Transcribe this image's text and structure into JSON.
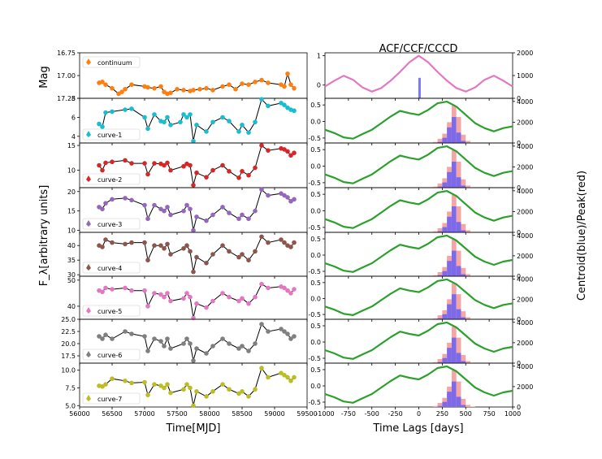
{
  "figure": {
    "left_xlabel": "Time[MJD]",
    "left_ylabel_top": "Mag",
    "left_ylabel_flux": "F_λ[arbitrary units]",
    "right_title": "ACF/CCF/CCCD",
    "right_xlabel": "Time Lags [days]",
    "right_ylabel2": "Centroid(blue)/Peak(red)"
  },
  "chart_data": [
    {
      "type": "line",
      "id": "left-light-curves",
      "x_range": [
        56000,
        59500
      ],
      "x_ticks": [
        56000,
        56500,
        57000,
        57500,
        58000,
        58500,
        59000,
        59500
      ],
      "xlabel": "Time[MJD]",
      "panels": [
        {
          "name": "continuum",
          "color": "#ff7f0e",
          "invert_y": true,
          "ylim": [
            17.25,
            16.75
          ],
          "yticks": [
            16.75,
            17.0,
            17.25
          ],
          "ytick_labels": [
            "16.75",
            "17.00",
            "17.25"
          ],
          "x": [
            56300,
            56350,
            56400,
            56500,
            56600,
            56650,
            56700,
            56800,
            57000,
            57050,
            57150,
            57250,
            57300,
            57350,
            57400,
            57500,
            57600,
            57700,
            57750,
            57850,
            57950,
            58050,
            58200,
            58300,
            58400,
            58500,
            58600,
            58700,
            58800,
            58900,
            59100,
            59150,
            59200,
            59250,
            59300
          ],
          "y": [
            17.08,
            17.07,
            17.1,
            17.14,
            17.2,
            17.18,
            17.15,
            17.1,
            17.12,
            17.13,
            17.14,
            17.12,
            17.18,
            17.2,
            17.19,
            17.15,
            17.16,
            17.17,
            17.16,
            17.15,
            17.14,
            17.16,
            17.12,
            17.1,
            17.15,
            17.09,
            17.1,
            17.07,
            17.05,
            17.08,
            17.1,
            17.12,
            16.98,
            17.1,
            17.14
          ]
        },
        {
          "name": "curve-1",
          "color": "#17becf",
          "ylim": [
            3.3,
            8.0
          ],
          "yticks": [
            4,
            6,
            8
          ],
          "ytick_labels": [
            "4",
            "6",
            "8"
          ],
          "x": [
            56300,
            56350,
            56400,
            56500,
            56700,
            56800,
            57000,
            57050,
            57150,
            57250,
            57300,
            57350,
            57400,
            57550,
            57600,
            57650,
            57700,
            57750,
            57800,
            57950,
            58050,
            58200,
            58300,
            58450,
            58500,
            58600,
            58700,
            58800,
            58900,
            59100,
            59150,
            59200,
            59250,
            59300
          ],
          "y": [
            5.3,
            5.0,
            6.5,
            6.6,
            6.8,
            6.9,
            6.0,
            4.8,
            6.3,
            5.6,
            5.5,
            6.0,
            5.2,
            5.5,
            6.3,
            6.0,
            6.3,
            3.5,
            5.2,
            4.5,
            5.5,
            6.0,
            5.6,
            4.5,
            5.2,
            4.4,
            5.5,
            7.9,
            7.2,
            7.5,
            7.3,
            7.0,
            6.8,
            6.7
          ]
        },
        {
          "name": "curve-2",
          "color": "#d62728",
          "ylim": [
            6.5,
            15.5
          ],
          "yticks": [
            10,
            15
          ],
          "ytick_labels": [
            "10",
            "15"
          ],
          "x": [
            56300,
            56350,
            56400,
            56500,
            56700,
            56800,
            57000,
            57050,
            57150,
            57250,
            57300,
            57350,
            57400,
            57600,
            57650,
            57700,
            57750,
            57800,
            57950,
            58050,
            58200,
            58300,
            58450,
            58500,
            58600,
            58700,
            58800,
            58900,
            59100,
            59150,
            59200,
            59250,
            59300
          ],
          "y": [
            11.0,
            10.0,
            11.5,
            11.7,
            12.0,
            11.4,
            11.4,
            9.2,
            11.4,
            11.3,
            11.0,
            11.5,
            10.0,
            10.8,
            11.3,
            11.0,
            7.0,
            9.5,
            8.6,
            10.0,
            11.0,
            9.8,
            8.5,
            9.8,
            9.0,
            10.5,
            15.0,
            14.0,
            14.4,
            14.2,
            13.8,
            13.0,
            13.5
          ]
        },
        {
          "name": "curve-3",
          "color": "#9467bd",
          "ylim": [
            9.5,
            21.0
          ],
          "yticks": [
            10,
            15,
            20
          ],
          "ytick_labels": [
            "10",
            "15",
            "20"
          ],
          "x": [
            56300,
            56350,
            56400,
            56500,
            56700,
            56800,
            57000,
            57050,
            57150,
            57250,
            57300,
            57350,
            57400,
            57600,
            57650,
            57700,
            57750,
            57800,
            57950,
            58050,
            58200,
            58300,
            58450,
            58500,
            58600,
            58700,
            58800,
            58900,
            59100,
            59150,
            59200,
            59250,
            59300
          ],
          "y": [
            16.0,
            15.5,
            17.0,
            18.0,
            18.3,
            17.8,
            16.5,
            13.0,
            16.5,
            15.5,
            15.0,
            16.0,
            14.0,
            15.0,
            16.5,
            15.5,
            10.0,
            13.5,
            12.5,
            14.0,
            16.0,
            14.5,
            13.0,
            14.0,
            13.0,
            15.0,
            20.5,
            19.0,
            19.5,
            19.0,
            18.5,
            17.5,
            18.0
          ]
        },
        {
          "name": "curve-4",
          "color": "#8c564b",
          "ylim": [
            29.5,
            44.5
          ],
          "yticks": [
            30,
            35,
            40
          ],
          "ytick_labels": [
            "30",
            "35",
            "40"
          ],
          "x": [
            56300,
            56350,
            56400,
            56500,
            56700,
            56800,
            57000,
            57050,
            57150,
            57250,
            57300,
            57350,
            57400,
            57600,
            57650,
            57700,
            57750,
            57800,
            57950,
            58050,
            58200,
            58300,
            58450,
            58500,
            58600,
            58700,
            58800,
            58900,
            59100,
            59150,
            59200,
            59250,
            59300
          ],
          "y": [
            40.0,
            39.5,
            42.0,
            41.0,
            40.5,
            41.0,
            41.0,
            35.0,
            40.0,
            40.0,
            39.0,
            40.5,
            37.0,
            39.0,
            40.0,
            38.0,
            31.0,
            36.0,
            34.0,
            37.0,
            40.0,
            38.0,
            36.0,
            37.0,
            35.0,
            38.0,
            43.0,
            41.0,
            42.0,
            41.0,
            40.0,
            39.5,
            41.0
          ]
        },
        {
          "name": "curve-5",
          "color": "#e377c2",
          "ylim": [
            35.0,
            51.5
          ],
          "yticks": [
            40,
            50
          ],
          "ytick_labels": [
            "40",
            "50"
          ],
          "x": [
            56300,
            56350,
            56400,
            56500,
            56700,
            56800,
            57000,
            57050,
            57150,
            57250,
            57300,
            57350,
            57400,
            57600,
            57650,
            57700,
            57750,
            57800,
            57950,
            58050,
            58200,
            58300,
            58450,
            58500,
            58600,
            58700,
            58800,
            58900,
            59100,
            59150,
            59200,
            59250,
            59300
          ],
          "y": [
            46.0,
            45.5,
            47.0,
            46.5,
            47.0,
            46.0,
            46.0,
            40.0,
            45.0,
            44.5,
            43.5,
            45.0,
            42.0,
            43.0,
            45.0,
            43.5,
            35.5,
            41.0,
            39.5,
            42.0,
            45.0,
            43.5,
            42.0,
            43.0,
            41.0,
            43.5,
            48.5,
            47.0,
            47.5,
            47.0,
            46.0,
            45.0,
            46.5
          ]
        },
        {
          "name": "curve-6",
          "color": "#7f7f7f",
          "ylim": [
            16.0,
            25.0
          ],
          "yticks": [
            17.5,
            20.0,
            22.5,
            25.0
          ],
          "ytick_labels": [
            "17.5",
            "20.0",
            "22.5",
            "25.0"
          ],
          "x": [
            56300,
            56350,
            56400,
            56500,
            56700,
            56800,
            57000,
            57050,
            57150,
            57250,
            57300,
            57350,
            57400,
            57600,
            57650,
            57700,
            57750,
            57800,
            57950,
            58050,
            58200,
            58300,
            58450,
            58500,
            58600,
            58700,
            58800,
            58900,
            59100,
            59150,
            59200,
            59250,
            59300
          ],
          "y": [
            21.5,
            21.0,
            21.8,
            21.0,
            22.5,
            22.0,
            21.5,
            18.5,
            21.0,
            20.5,
            19.5,
            21.0,
            19.0,
            20.0,
            21.0,
            20.0,
            16.5,
            19.0,
            18.0,
            19.5,
            21.0,
            20.0,
            19.0,
            19.5,
            18.5,
            20.0,
            24.0,
            22.5,
            23.0,
            22.5,
            22.0,
            21.0,
            21.5
          ]
        },
        {
          "name": "curve-7",
          "color": "#bcbd22",
          "ylim": [
            4.8,
            11.0
          ],
          "yticks": [
            5.0,
            7.5,
            10.0
          ],
          "ytick_labels": [
            "5.0",
            "7.5",
            "10.0"
          ],
          "x": [
            56300,
            56350,
            56400,
            56500,
            56700,
            56800,
            57000,
            57050,
            57150,
            57250,
            57300,
            57350,
            57400,
            57600,
            57650,
            57700,
            57750,
            57800,
            57950,
            58050,
            58200,
            58300,
            58450,
            58500,
            58600,
            58700,
            58800,
            58900,
            59100,
            59150,
            59200,
            59250,
            59300
          ],
          "y": [
            7.8,
            7.7,
            8.0,
            8.8,
            8.5,
            8.2,
            8.3,
            6.5,
            8.0,
            7.8,
            7.5,
            8.0,
            6.8,
            7.3,
            8.0,
            7.5,
            5.0,
            7.0,
            6.3,
            7.0,
            8.0,
            7.3,
            6.7,
            7.0,
            6.3,
            7.3,
            10.3,
            9.0,
            9.6,
            9.3,
            9.0,
            8.5,
            9.0
          ]
        }
      ]
    },
    {
      "type": "line",
      "id": "right-acf-ccf",
      "x_range": [
        -1000,
        1000
      ],
      "x_ticks": [
        -1000,
        -750,
        -500,
        -250,
        0,
        250,
        500,
        750,
        1000
      ],
      "xlabel": "Time Lags [days]",
      "title": "ACF/CCF/CCCD",
      "acf": {
        "color": "#e377c2",
        "ylim": [
          -0.45,
          1.1
        ],
        "yticks": [
          0,
          1
        ],
        "ytick_labels": [
          "0",
          "1"
        ],
        "x": [
          -1000,
          -900,
          -800,
          -700,
          -600,
          -500,
          -400,
          -300,
          -200,
          -100,
          0,
          100,
          200,
          300,
          400,
          500,
          600,
          700,
          800,
          900,
          1000
        ],
        "y": [
          -0.05,
          0.15,
          0.32,
          0.18,
          -0.08,
          -0.22,
          -0.1,
          0.15,
          0.45,
          0.78,
          1.0,
          0.78,
          0.45,
          0.15,
          -0.1,
          -0.22,
          -0.08,
          0.18,
          0.32,
          0.15,
          -0.05
        ]
      },
      "acf_hist_ylim": [
        0,
        2000
      ],
      "acf_hist_yticks": [
        0,
        1000,
        2000
      ],
      "ccf": {
        "color": "#2ca02c",
        "ylim": [
          -0.65,
          0.7
        ],
        "yticks": [
          -0.5,
          0.0,
          0.5
        ],
        "ytick_labels": [
          "-0.5",
          "0.0",
          "0.5"
        ],
        "x": [
          -1000,
          -900,
          -800,
          -700,
          -600,
          -500,
          -400,
          -300,
          -200,
          -100,
          0,
          100,
          200,
          300,
          400,
          500,
          600,
          700,
          800,
          900,
          1000
        ],
        "y": [
          -0.25,
          -0.35,
          -0.48,
          -0.52,
          -0.38,
          -0.25,
          -0.05,
          0.15,
          0.32,
          0.25,
          0.2,
          0.35,
          0.55,
          0.6,
          0.45,
          0.2,
          -0.05,
          -0.2,
          -0.3,
          -0.2,
          -0.15
        ]
      },
      "hist_ylim": [
        0,
        4300
      ],
      "hist_yticks": [
        0,
        2000,
        4000
      ],
      "hist_ytick_labels": [
        "0",
        "2000",
        "4000"
      ],
      "centroid_color": "#5555ff",
      "peak_color": "#f4a6a6",
      "hist_bins": [
        150,
        200,
        250,
        300,
        350,
        400,
        450,
        500,
        550
      ],
      "peak_counts": [
        [
          100,
          400,
          900,
          2000,
          3600,
          2500,
          800,
          200,
          50
        ],
        [
          100,
          400,
          900,
          2000,
          3600,
          2500,
          800,
          200,
          50
        ],
        [
          100,
          400,
          900,
          2000,
          3600,
          2500,
          800,
          200,
          50
        ],
        [
          100,
          400,
          900,
          2000,
          3600,
          2500,
          800,
          200,
          50
        ],
        [
          100,
          400,
          900,
          2000,
          3600,
          2500,
          800,
          200,
          50
        ],
        [
          100,
          400,
          900,
          2000,
          3600,
          2500,
          800,
          200,
          50
        ],
        [
          100,
          400,
          900,
          2000,
          3600,
          2500,
          800,
          200,
          50
        ]
      ],
      "centroid_counts": [
        [
          0,
          100,
          500,
          1500,
          2500,
          1000,
          200,
          0,
          0
        ],
        [
          0,
          100,
          500,
          1500,
          2500,
          1000,
          200,
          0,
          0
        ],
        [
          0,
          100,
          500,
          1500,
          2500,
          1000,
          200,
          0,
          0
        ],
        [
          0,
          100,
          500,
          1500,
          2500,
          1000,
          200,
          0,
          0
        ],
        [
          0,
          100,
          500,
          1500,
          2500,
          1000,
          200,
          0,
          0
        ],
        [
          0,
          100,
          500,
          1500,
          2500,
          1000,
          200,
          0,
          0
        ],
        [
          0,
          100,
          500,
          1500,
          2500,
          1000,
          200,
          0,
          0
        ]
      ]
    }
  ]
}
